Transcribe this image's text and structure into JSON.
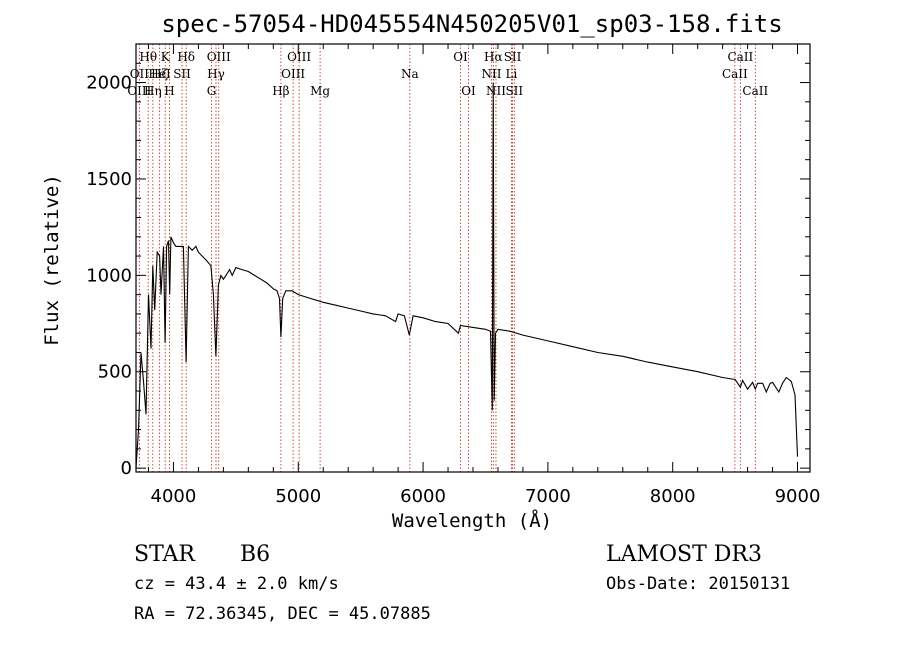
{
  "title": "spec-57054-HD045554N450205V01_sp03-158.fits",
  "chart_data": {
    "type": "line",
    "xlabel": "Wavelength (Å)",
    "ylabel": "Flux (relative)",
    "xlim": [
      3700,
      9100
    ],
    "ylim": [
      -20,
      2200
    ],
    "xticks": [
      4000,
      5000,
      6000,
      7000,
      8000,
      9000
    ],
    "yticks": [
      0,
      500,
      1000,
      1500,
      2000
    ],
    "x": [
      3700,
      3720,
      3740,
      3760,
      3780,
      3800,
      3820,
      3835,
      3850,
      3870,
      3889,
      3900,
      3920,
      3933,
      3945,
      3960,
      3970,
      3980,
      4000,
      4020,
      4050,
      4080,
      4101,
      4120,
      4150,
      4180,
      4200,
      4230,
      4260,
      4300,
      4320,
      4340,
      4360,
      4380,
      4400,
      4420,
      4450,
      4471,
      4500,
      4550,
      4600,
      4650,
      4700,
      4750,
      4800,
      4830,
      4850,
      4861,
      4875,
      4900,
      4950,
      5000,
      5100,
      5200,
      5300,
      5400,
      5500,
      5600,
      5700,
      5780,
      5800,
      5850,
      5890,
      5920,
      6000,
      6100,
      6200,
      6283,
      6300,
      6400,
      6500,
      6540,
      6555,
      6562,
      6570,
      6580,
      6600,
      6700,
      6800,
      7000,
      7200,
      7400,
      7600,
      7800,
      8000,
      8200,
      8400,
      8500,
      8542,
      8560,
      8600,
      8640,
      8662,
      8680,
      8720,
      8750,
      8780,
      8800,
      8850,
      8880,
      8910,
      8950,
      8980,
      9000
    ],
    "values": [
      0,
      200,
      600,
      450,
      280,
      900,
      620,
      1050,
      820,
      1120,
      1100,
      900,
      1150,
      650,
      1150,
      1180,
      900,
      1200,
      1170,
      1150,
      1150,
      1150,
      550,
      1150,
      1130,
      1150,
      1120,
      1100,
      1080,
      1050,
      900,
      580,
      950,
      1000,
      980,
      1000,
      1030,
      1000,
      1040,
      1030,
      1020,
      1000,
      980,
      960,
      930,
      920,
      880,
      680,
      880,
      920,
      920,
      900,
      880,
      860,
      845,
      830,
      815,
      800,
      790,
      760,
      800,
      790,
      690,
      790,
      780,
      760,
      750,
      700,
      740,
      730,
      720,
      710,
      300,
      2000,
      350,
      700,
      720,
      710,
      690,
      660,
      630,
      600,
      580,
      550,
      525,
      500,
      470,
      460,
      420,
      455,
      410,
      445,
      410,
      440,
      440,
      395,
      440,
      445,
      395,
      440,
      470,
      450,
      380,
      60
    ],
    "line_labels": [
      {
        "label": "Hθ",
        "wavelength": 3798,
        "row": 1
      },
      {
        "label": "OII",
        "wavelength": 3727,
        "row": 2
      },
      {
        "label": "OIII",
        "wavelength": 3727,
        "row": 3
      },
      {
        "label": "Hη",
        "wavelength": 3835,
        "row": 3
      },
      {
        "label": "K",
        "wavelength": 3934,
        "row": 1
      },
      {
        "label": "Hζ",
        "wavelength": 3889,
        "row": 2
      },
      {
        "label": "HeI",
        "wavelength": 3889,
        "row": 2
      },
      {
        "label": "SII",
        "wavelength": 4069,
        "row": 2
      },
      {
        "label": "H",
        "wavelength": 3968,
        "row": 3
      },
      {
        "label": "Hδ",
        "wavelength": 4102,
        "row": 1
      },
      {
        "label": "OIII",
        "wavelength": 4363,
        "row": 1
      },
      {
        "label": "Hγ",
        "wavelength": 4341,
        "row": 2
      },
      {
        "label": "G",
        "wavelength": 4305,
        "row": 3
      },
      {
        "label": "Hβ",
        "wavelength": 4861,
        "row": 3
      },
      {
        "label": "OIII",
        "wavelength": 5007,
        "row": 1
      },
      {
        "label": "OIII",
        "wavelength": 4959,
        "row": 2
      },
      {
        "label": "Mg",
        "wavelength": 5175,
        "row": 3
      },
      {
        "label": "Na",
        "wavelength": 5894,
        "row": 2
      },
      {
        "label": "OI",
        "wavelength": 6300,
        "row": 1
      },
      {
        "label": "OI",
        "wavelength": 6364,
        "row": 3
      },
      {
        "label": "Hα",
        "wavelength": 6563,
        "row": 1
      },
      {
        "label": "SII",
        "wavelength": 6717,
        "row": 1
      },
      {
        "label": "NII",
        "wavelength": 6548,
        "row": 2
      },
      {
        "label": "Li",
        "wavelength": 6708,
        "row": 2
      },
      {
        "label": "NII",
        "wavelength": 6584,
        "row": 3
      },
      {
        "label": "SII",
        "wavelength": 6731,
        "row": 3
      },
      {
        "label": "CaII",
        "wavelength": 8542,
        "row": 1
      },
      {
        "label": "CaII",
        "wavelength": 8498,
        "row": 2
      },
      {
        "label": "CaII",
        "wavelength": 8662,
        "row": 3
      }
    ],
    "marker_lines": [
      3727,
      3798,
      3835,
      3889,
      3934,
      3968,
      4069,
      4102,
      4305,
      4341,
      4363,
      4861,
      4959,
      5007,
      5175,
      5894,
      6300,
      6364,
      6548,
      6563,
      6584,
      6708,
      6717,
      6731,
      8498,
      8542,
      8662
    ],
    "colors": {
      "line": "#000000",
      "marker": "#c0392b",
      "axes": "#000000"
    }
  },
  "info": {
    "class": "STAR",
    "subclass": "B6",
    "survey": "LAMOST DR3",
    "cz": "cz = 43.4 ± 2.0 km/s",
    "obs_date": "Obs-Date: 20150131",
    "radec": "RA =  72.36345, DEC =  45.07885"
  }
}
